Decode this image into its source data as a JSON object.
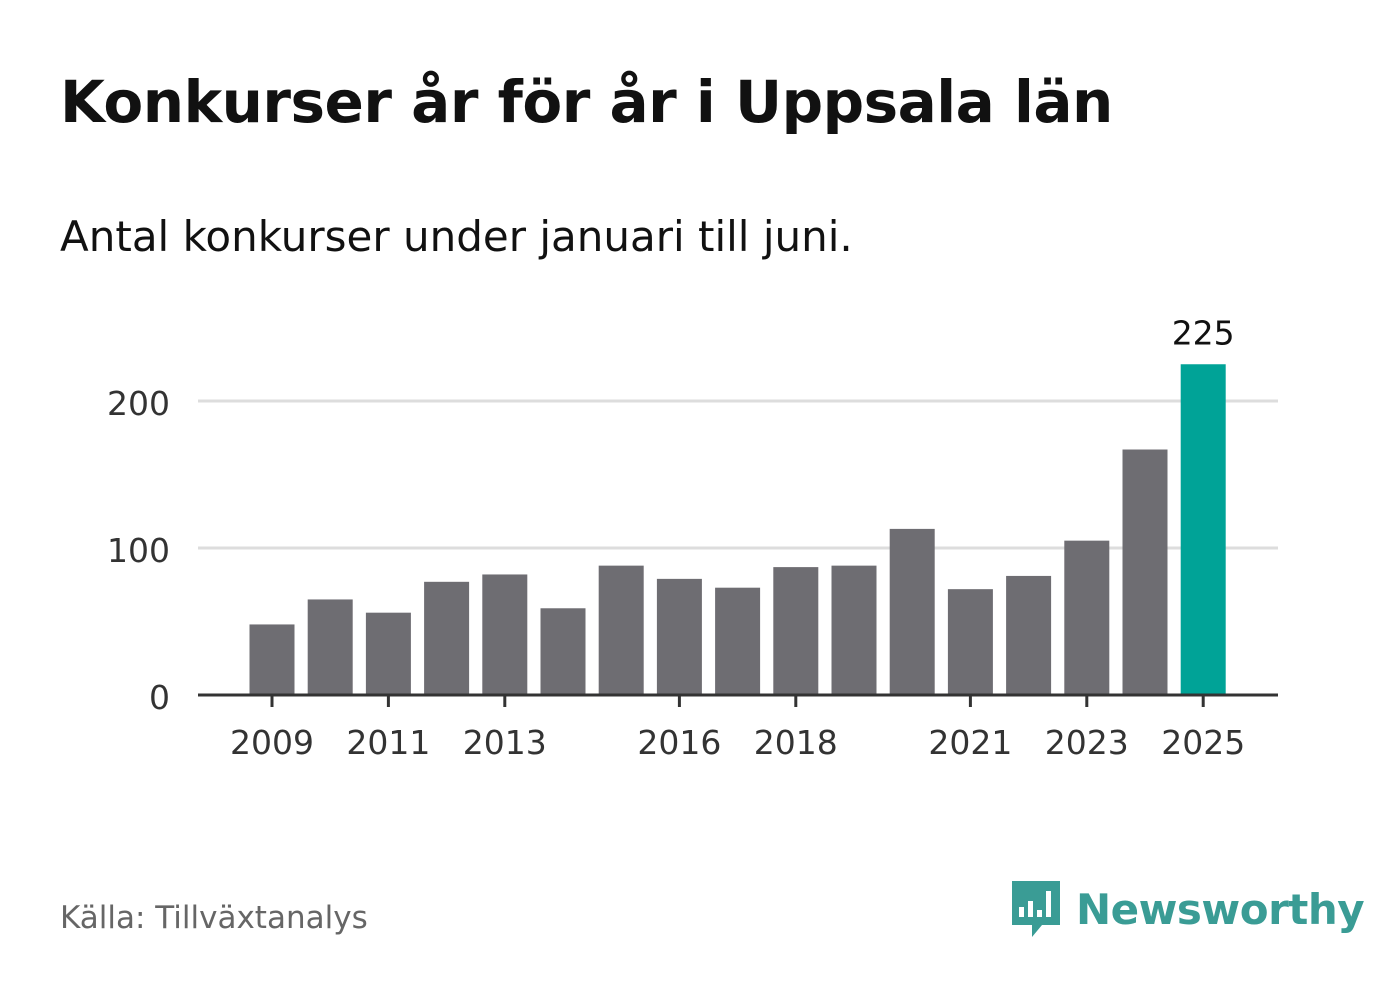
{
  "title": "Konkurser år för år i Uppsala län",
  "subtitle": "Antal konkurser under januari till juni.",
  "source": "Källa: Tillväxtanalys",
  "brand": {
    "name": "Newsworthy",
    "icon": "newsworthy-logo-icon",
    "color": "#3a9c95"
  },
  "colors": {
    "bar": "#6e6d72",
    "highlight": "#00a397",
    "grid": "#dddddd",
    "axis": "#333333",
    "text": "#333333"
  },
  "chart_data": {
    "type": "bar",
    "categories": [
      "2009",
      "2010",
      "2011",
      "2012",
      "2013",
      "2014",
      "2015",
      "2016",
      "2017",
      "2018",
      "2019",
      "2020",
      "2021",
      "2022",
      "2023",
      "2024",
      "2025"
    ],
    "values": [
      48,
      65,
      56,
      77,
      82,
      59,
      88,
      79,
      73,
      87,
      88,
      113,
      72,
      81,
      105,
      167,
      225
    ],
    "x_tick_labels": [
      "2009",
      "2011",
      "2013",
      "2016",
      "2018",
      "2021",
      "2023",
      "2025"
    ],
    "y_ticks": [
      0,
      100,
      200
    ],
    "ylim": [
      0,
      225
    ],
    "highlight": {
      "category": "2025",
      "label": "225"
    },
    "grid": true,
    "xlabel": "",
    "ylabel": ""
  }
}
